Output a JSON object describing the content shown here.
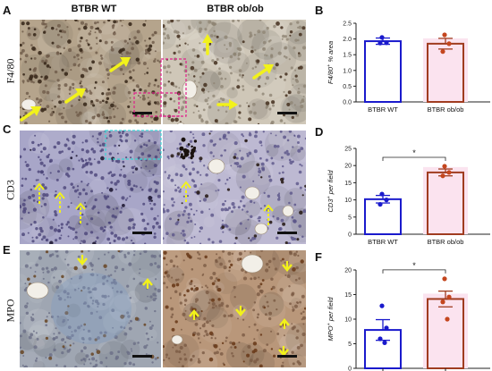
{
  "figure": {
    "columns": [
      "BTBR WT",
      "BTBR ob/ob"
    ],
    "rows": [
      {
        "letter": "A",
        "stain": "F4/80"
      },
      {
        "letter": "C",
        "stain": "CD3"
      },
      {
        "letter": "E",
        "stain": "MPO"
      }
    ],
    "chart_letters": [
      "B",
      "D",
      "F"
    ],
    "colors": {
      "wt": "#1a1acc",
      "ob": "#a03c20",
      "ob_fill": "#fbe3ef",
      "arrow": "#f2f21a",
      "inset": "#e0208a"
    }
  },
  "chart_data": [
    {
      "type": "bar",
      "letter": "B",
      "categories": [
        "BTBR WT",
        "BTBR ob/ob"
      ],
      "values": [
        1.93,
        1.85
      ],
      "errors": [
        0.1,
        0.17
      ],
      "points": [
        [
          2.05,
          1.88,
          1.87
        ],
        [
          2.13,
          1.85,
          1.6
        ]
      ],
      "ylabel_main": "F4/80",
      "ylabel_sup": "+",
      "ylabel_rest": " % area",
      "ylim": [
        0,
        2.5
      ],
      "yticks": [
        "0.0",
        "0.5",
        "1.0",
        "1.5",
        "2.0",
        "2.5"
      ],
      "ytick_values": [
        0,
        0.5,
        1.0,
        1.5,
        2.0,
        2.5
      ],
      "significance": ""
    },
    {
      "type": "bar",
      "letter": "D",
      "categories": [
        "BTBR WT",
        "BTBR ob/ob"
      ],
      "values": [
        10.2,
        18.0
      ],
      "errors": [
        1.1,
        1.0
      ],
      "points": [
        [
          11.7,
          10.0,
          8.7
        ],
        [
          19.8,
          18.0,
          17.0
        ]
      ],
      "ylabel_main": "CD3",
      "ylabel_sup": "+",
      "ylabel_rest": " per field",
      "ylim": [
        0,
        25
      ],
      "yticks": [
        "0",
        "5",
        "10",
        "15",
        "20",
        "25"
      ],
      "ytick_values": [
        0,
        5,
        10,
        15,
        20,
        25
      ],
      "significance": "*"
    },
    {
      "type": "bar",
      "letter": "F",
      "categories": [
        "",
        ""
      ],
      "values": [
        7.8,
        14.1
      ],
      "errors": [
        2.1,
        1.6
      ],
      "points": [
        [
          12.7,
          8.2,
          6.0,
          5.2
        ],
        [
          18.2,
          14.5,
          13.5,
          10.0
        ]
      ],
      "ylabel_main": "MPO",
      "ylabel_sup": "+",
      "ylabel_rest": " per field",
      "ylim": [
        0,
        20
      ],
      "yticks": [
        "0",
        "5",
        "10",
        "15",
        "20"
      ],
      "ytick_values": [
        0,
        5,
        10,
        15,
        20
      ],
      "significance": "*"
    }
  ]
}
